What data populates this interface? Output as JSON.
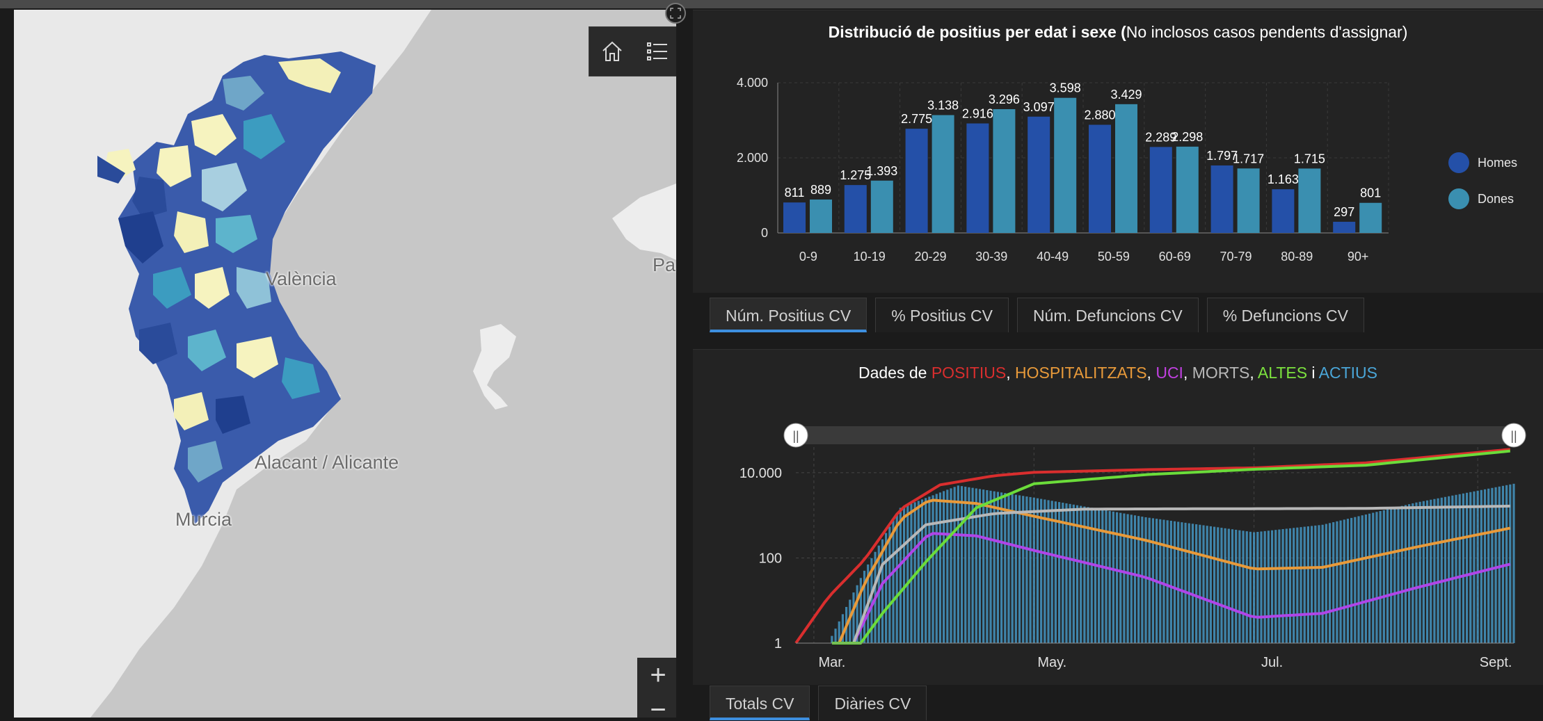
{
  "map": {
    "labels": [
      "València",
      "Alacant / Alicante",
      "Murcia",
      "Pa"
    ],
    "toolbar": {
      "home_icon": "home-icon",
      "legend_icon": "list-icon"
    },
    "zoom_in": "+",
    "zoom_out": "−"
  },
  "colors": {
    "homes": "#2450a8",
    "dones": "#3a8fb0",
    "positius": "#d92e2e",
    "hospitalitzats": "#e89a3a",
    "uci": "#b045e8",
    "morts": "#b8b8b8",
    "altes": "#6bdc3a",
    "actius": "#4aa6d8"
  },
  "chart_age": {
    "title_bold": "Distribució de positius per edat i sexe (",
    "title_rest": "No inclosos casos pendents d'assignar)",
    "legend": [
      {
        "label": "Homes"
      },
      {
        "label": "Dones"
      }
    ],
    "tabs": [
      {
        "label": "Núm. Positius CV",
        "active": true
      },
      {
        "label": "% Positius CV",
        "active": false
      },
      {
        "label": "Núm. Defuncions CV",
        "active": false
      },
      {
        "label": "% Defuncions CV",
        "active": false
      }
    ]
  },
  "chart_time": {
    "title_prefix": "Dades de ",
    "title_parts": [
      {
        "text": "POSITIUS",
        "color": "#d92e2e"
      },
      {
        "text": ", ",
        "color": "#ffffff"
      },
      {
        "text": "HOSPITALITZATS",
        "color": "#e89a3a"
      },
      {
        "text": ", ",
        "color": "#ffffff"
      },
      {
        "text": "UCI",
        "color": "#c040e0"
      },
      {
        "text": ", ",
        "color": "#ffffff"
      },
      {
        "text": "MORTS",
        "color": "#b8b8b8"
      },
      {
        "text": ", ",
        "color": "#ffffff"
      },
      {
        "text": "ALTES",
        "color": "#7ce23e"
      },
      {
        "text": " i ",
        "color": "#ffffff"
      },
      {
        "text": "ACTIUS",
        "color": "#4aa6d8"
      }
    ],
    "slider_handles": [
      "||",
      "||"
    ],
    "tabs": [
      {
        "label": "Totals CV",
        "active": true
      },
      {
        "label": "Diàries CV",
        "active": false
      }
    ]
  },
  "chart_data": [
    {
      "type": "bar",
      "categories": [
        "0-9",
        "10-19",
        "20-29",
        "30-39",
        "40-49",
        "50-59",
        "60-69",
        "70-79",
        "80-89",
        "90+"
      ],
      "series": [
        {
          "name": "Homes",
          "values": [
            811,
            1275,
            2775,
            2916,
            3097,
            2880,
            2289,
            1797,
            1163,
            297
          ],
          "labels": [
            "811",
            "1.275",
            "2.775",
            "2.916",
            "3.097",
            "2.880",
            "2.289",
            "1.797",
            "1.163",
            "297"
          ]
        },
        {
          "name": "Dones",
          "values": [
            889,
            1393,
            3138,
            3296,
            3598,
            3429,
            2298,
            1717,
            1715,
            801
          ],
          "labels": [
            "889",
            "1.393",
            "3.138",
            "3.296",
            "3.598",
            "3.429",
            "2.298",
            "1.717",
            "1.715",
            "801"
          ]
        }
      ],
      "ylim": [
        0,
        4000
      ],
      "yticks": [
        0,
        2000,
        4000
      ],
      "ytick_labels": [
        "0",
        "2.000",
        "4.000"
      ],
      "grid": true,
      "legend_position": "right"
    },
    {
      "type": "line",
      "x_tick_labels": [
        "Mar.",
        "May.",
        "Jul.",
        "Sept."
      ],
      "x_ticks": [
        "2020-03-01",
        "2020-05-01",
        "2020-07-01",
        "2020-09-01"
      ],
      "x_range": [
        "2020-02-25",
        "2020-09-11"
      ],
      "y_scale": "log",
      "yticks": [
        1,
        100,
        10000
      ],
      "ytick_labels": [
        "1",
        "100",
        "10.000"
      ],
      "grid": true,
      "series": [
        {
          "name": "POSITIUS",
          "points": [
            [
              "2020-02-25",
              1
            ],
            [
              "2020-03-05",
              12
            ],
            [
              "2020-03-15",
              90
            ],
            [
              "2020-03-25",
              1400
            ],
            [
              "2020-04-05",
              5200
            ],
            [
              "2020-04-20",
              8500
            ],
            [
              "2020-05-01",
              10200
            ],
            [
              "2020-06-01",
              11800
            ],
            [
              "2020-07-01",
              13000
            ],
            [
              "2020-08-01",
              17000
            ],
            [
              "2020-09-11",
              36000
            ]
          ]
        },
        {
          "name": "HOSPITALITZATS",
          "points": [
            [
              "2020-03-08",
              1
            ],
            [
              "2020-03-15",
              25
            ],
            [
              "2020-03-25",
              800
            ],
            [
              "2020-04-02",
              2300
            ],
            [
              "2020-04-15",
              1900
            ],
            [
              "2020-05-01",
              950
            ],
            [
              "2020-06-01",
              260
            ],
            [
              "2020-07-01",
              55
            ],
            [
              "2020-07-20",
              60
            ],
            [
              "2020-08-15",
              180
            ],
            [
              "2020-09-11",
              520
            ]
          ]
        },
        {
          "name": "UCI",
          "points": [
            [
              "2020-03-12",
              1
            ],
            [
              "2020-03-20",
              25
            ],
            [
              "2020-04-02",
              380
            ],
            [
              "2020-04-15",
              330
            ],
            [
              "2020-05-01",
              150
            ],
            [
              "2020-06-01",
              35
            ],
            [
              "2020-07-01",
              4
            ],
            [
              "2020-07-20",
              5
            ],
            [
              "2020-08-15",
              20
            ],
            [
              "2020-09-11",
              75
            ]
          ]
        },
        {
          "name": "MORTS",
          "points": [
            [
              "2020-03-12",
              1
            ],
            [
              "2020-03-20",
              70
            ],
            [
              "2020-04-01",
              600
            ],
            [
              "2020-04-20",
              1100
            ],
            [
              "2020-05-15",
              1400
            ],
            [
              "2020-06-15",
              1420
            ],
            [
              "2020-08-01",
              1450
            ],
            [
              "2020-09-11",
              1650
            ]
          ]
        },
        {
          "name": "ALTES",
          "points": [
            [
              "2020-03-06",
              1
            ],
            [
              "2020-03-14",
              1
            ],
            [
              "2020-03-20",
              5
            ],
            [
              "2020-04-01",
              80
            ],
            [
              "2020-04-15",
              1500
            ],
            [
              "2020-05-01",
              5500
            ],
            [
              "2020-06-01",
              9000
            ],
            [
              "2020-07-01",
              12000
            ],
            [
              "2020-08-01",
              15000
            ],
            [
              "2020-09-11",
              33000
            ]
          ]
        },
        {
          "name": "ACTIUS",
          "points": [
            [
              "2020-03-05",
              1
            ],
            [
              "2020-03-15",
              50
            ],
            [
              "2020-03-25",
              1500
            ],
            [
              "2020-04-10",
              5000
            ],
            [
              "2020-05-01",
              2600
            ],
            [
              "2020-06-01",
              900
            ],
            [
              "2020-07-01",
              400
            ],
            [
              "2020-07-20",
              600
            ],
            [
              "2020-08-15",
              2000
            ],
            [
              "2020-09-11",
              5500
            ]
          ]
        }
      ]
    }
  ]
}
